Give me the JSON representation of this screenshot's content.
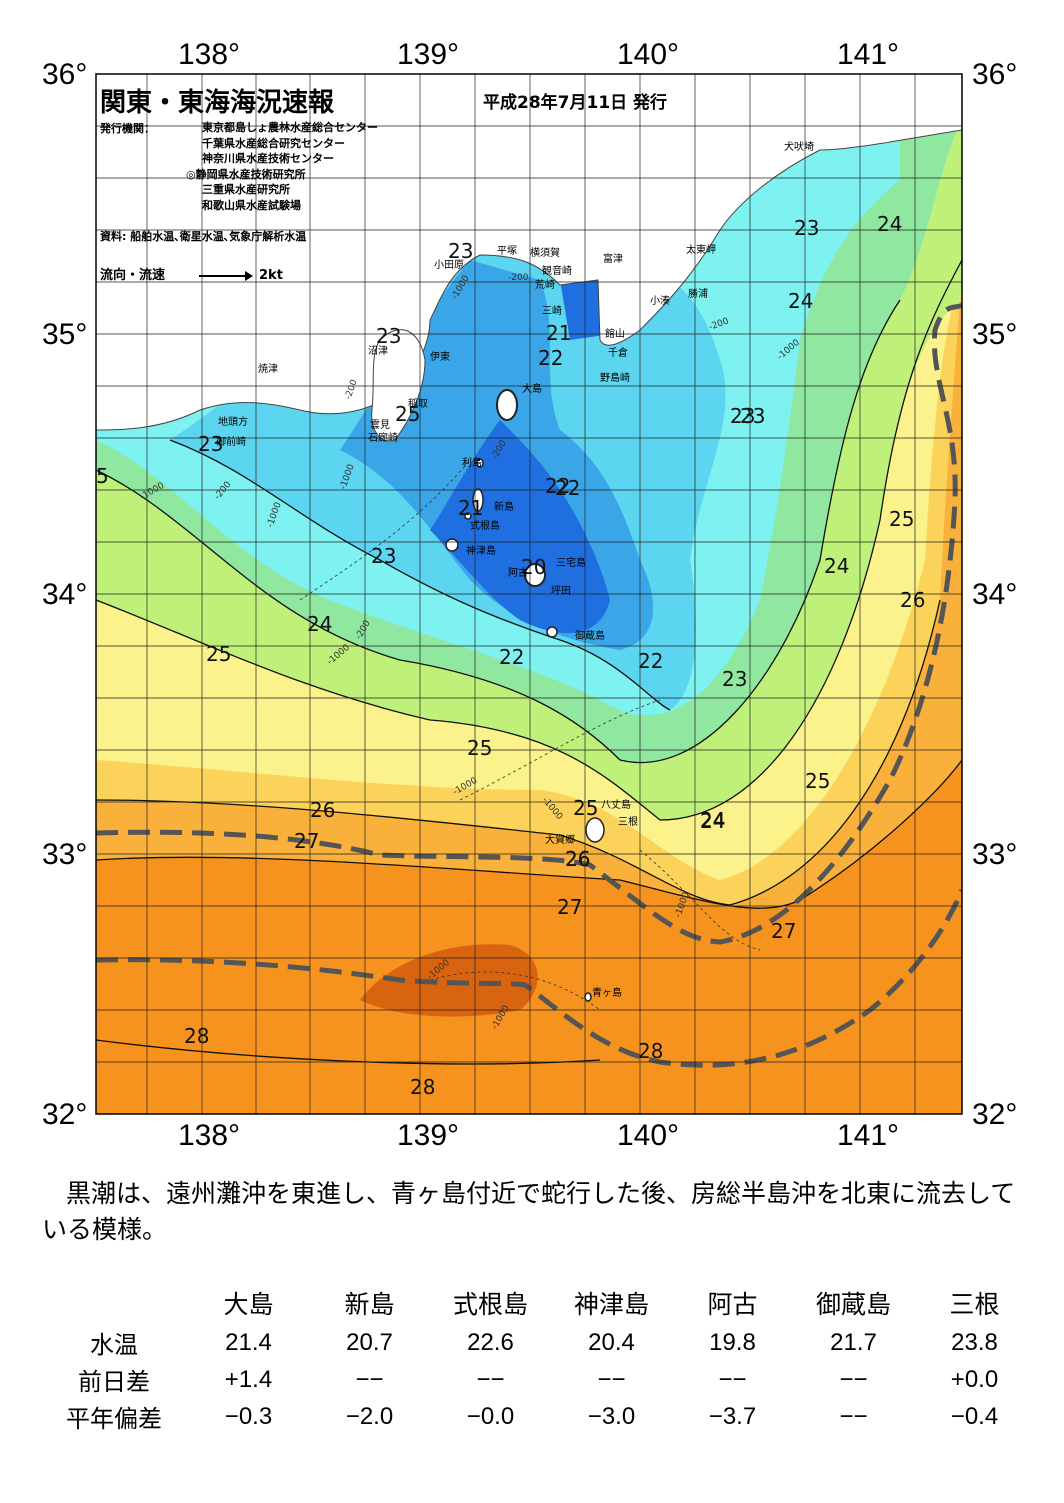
{
  "header": {
    "title": "関東・東海海況速報",
    "date": "平成28年7月11日 発行",
    "org_label": "発行機関：",
    "orgs": [
      "東京都島しょ農林水産総合センター",
      "千葉県水産総合研究センター",
      "神奈川県水産技術センター",
      "◎静岡県水産技術研究所",
      "三重県水産研究所",
      "和歌山県水産試験場"
    ],
    "data_source": "資料: 船舶水温､衛星水温､気象庁解析水温",
    "legend_label": "流向・流速",
    "legend_unit": "2kt"
  },
  "map": {
    "lon_ticks": [
      "138°",
      "139°",
      "140°",
      "141°"
    ],
    "lat_ticks": [
      "36°",
      "35°",
      "34°",
      "33°",
      "32°"
    ],
    "isotherm_labels": [
      "23",
      "23",
      "23",
      "25",
      "23",
      "5",
      "24",
      "25",
      "23",
      "24",
      "22",
      "21",
      "22",
      "23",
      "24",
      "24",
      "23",
      "24",
      "25",
      "26",
      "22",
      "22",
      "20",
      "21",
      "23",
      "22",
      "25",
      "24",
      "25",
      "26",
      "25",
      "24",
      "26",
      "27",
      "26",
      "27",
      "27",
      "28",
      "28",
      "28"
    ],
    "depth_labels": [
      "-200",
      "-1000",
      "-200",
      "-1000",
      "-200",
      "-1000",
      "-200",
      "-200",
      "-1000",
      "-1000",
      "-1000",
      "-1000",
      "-1000",
      "-1000",
      "-1000",
      "-200",
      "-1000"
    ],
    "places": [
      "犬吠埼",
      "太東岬",
      "勝浦",
      "小湊",
      "館山",
      "千倉",
      "野島崎",
      "富津",
      "観音崎",
      "横須賀",
      "平塚",
      "荒崎",
      "三崎",
      "小田原",
      "伊東",
      "沼津",
      "稲取",
      "焼津",
      "大島",
      "利島",
      "新島",
      "式根島",
      "神津島",
      "三宅島",
      "阿古",
      "坪田",
      "御蔵島",
      "八丈島",
      "三根",
      "大賀郷",
      "青ヶ島",
      "地頭方",
      "御前崎",
      "雲見",
      "石廊崎"
    ],
    "colors": {
      "land": "#ffffff",
      "coast": "#444444",
      "kuroshio": "#555555",
      "grid": "#222222"
    }
  },
  "summary": "黒潮は、遠州灘沖を東進し、青ヶ島付近で蛇行した後、房総半島沖を北東に流去している模様。",
  "observations": {
    "headers": [
      "大島",
      "新島",
      "式根島",
      "神津島",
      "阿古",
      "御蔵島",
      "三根"
    ],
    "rows": [
      {
        "label": "水温",
        "values": [
          "21.4",
          "20.7",
          "22.6",
          "20.4",
          "19.8",
          "21.7",
          "23.8"
        ]
      },
      {
        "label": "前日差",
        "values": [
          "+1.4",
          "−−",
          "−−",
          "−−",
          "−−",
          "−−",
          "+0.0"
        ]
      },
      {
        "label": "平年偏差",
        "values": [
          "−0.3",
          "−2.0",
          "−0.0",
          "−3.0",
          "−3.7",
          "−−",
          "−0.4"
        ]
      }
    ]
  }
}
